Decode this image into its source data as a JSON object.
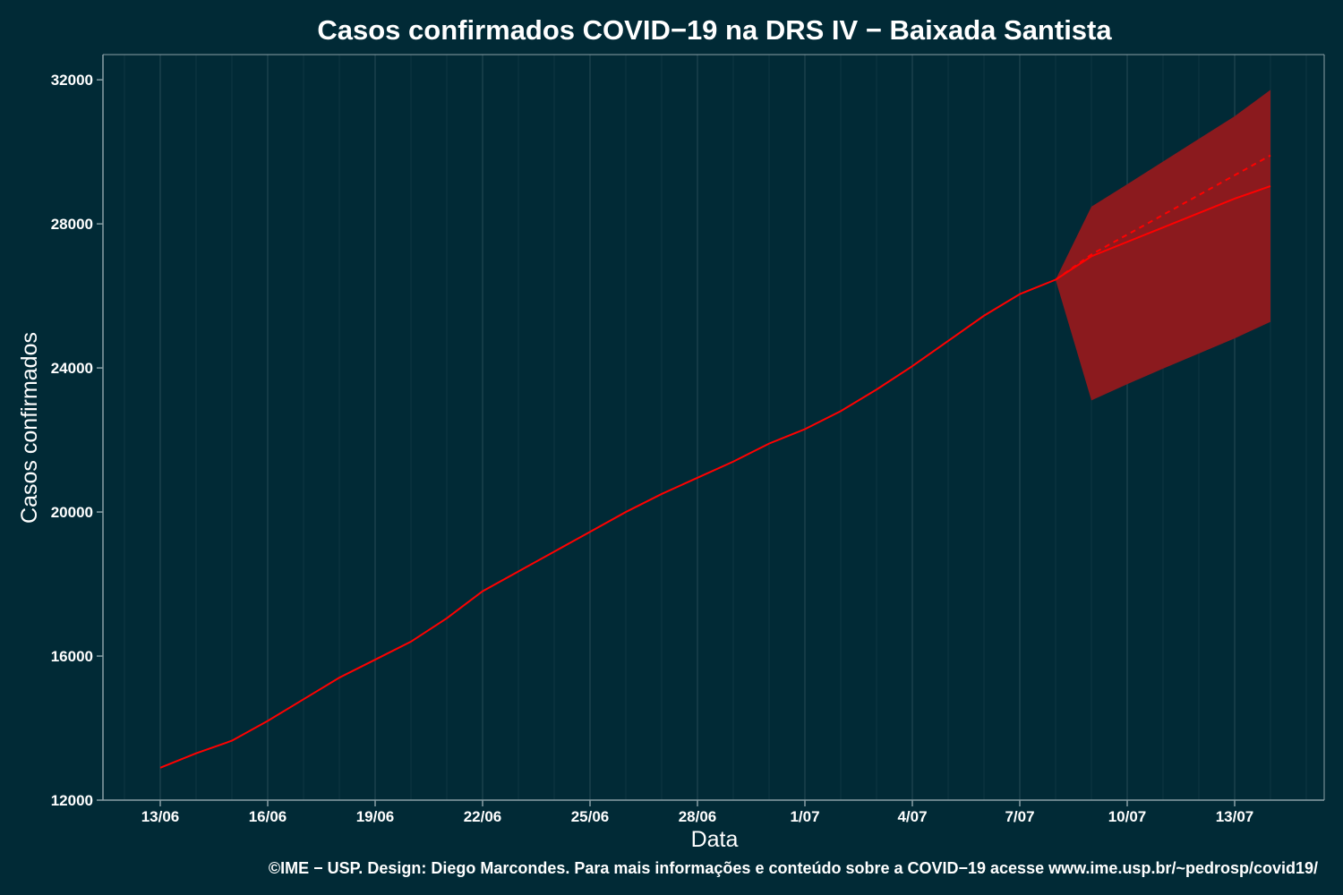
{
  "colors": {
    "background": "#012a36",
    "grid": "#1f4550",
    "axis": "#8aa0a6",
    "line": "#ff0000",
    "band": "#8b1a1e",
    "text": "#ffffff"
  },
  "chart_data": {
    "type": "line",
    "title": "Casos confirmados COVID−19 na DRS IV − Baixada Santista",
    "xlabel": "Data",
    "ylabel": "Casos confirmados",
    "caption": "©IME − USP. Design: Diego Marcondes. Para mais informações e conteúdo sobre a COVID−19 acesse www.ime.usp.br/~pedrosp/covid19/",
    "ylim": [
      12000,
      32700
    ],
    "yticks": [
      12000,
      16000,
      20000,
      24000,
      28000,
      32000
    ],
    "xlim_days": [
      -1.6,
      32.5
    ],
    "xtick_labels": [
      "13/06",
      "16/06",
      "19/06",
      "22/06",
      "25/06",
      "28/06",
      "1/07",
      "4/07",
      "7/07",
      "10/07",
      "13/07"
    ],
    "xtick_days": [
      0,
      3,
      6,
      9,
      12,
      15,
      18,
      21,
      24,
      27,
      30
    ],
    "grid": true,
    "observed": {
      "days": [
        0,
        1,
        2,
        3,
        4,
        5,
        6,
        7,
        8,
        9,
        10,
        11,
        12,
        13,
        14,
        15,
        16,
        17,
        18,
        19,
        20,
        21,
        22,
        23,
        24,
        25
      ],
      "values": [
        12900,
        13300,
        13650,
        14200,
        14800,
        15400,
        15900,
        16400,
        17050,
        17800,
        18350,
        18900,
        19450,
        20000,
        20500,
        20950,
        21400,
        21900,
        22300,
        22800,
        23400,
        24050,
        24750,
        25450,
        26050,
        26450
      ]
    },
    "forecast_mean": {
      "days": [
        25,
        26,
        27,
        28,
        29,
        30,
        31
      ],
      "values": [
        26450,
        27100,
        27500,
        27900,
        28300,
        28700,
        29050
      ]
    },
    "forecast_trend": {
      "days": [
        25,
        26,
        27,
        28,
        29,
        30,
        31
      ],
      "values": [
        26450,
        27150,
        27700,
        28250,
        28800,
        29350,
        29900
      ]
    },
    "forecast_band": {
      "days": [
        25,
        26,
        27,
        28,
        29,
        30,
        31
      ],
      "lower": [
        26450,
        23100,
        23550,
        23980,
        24400,
        24820,
        25280
      ],
      "upper": [
        26450,
        28480,
        29100,
        29730,
        30360,
        30990,
        31720
      ]
    }
  }
}
